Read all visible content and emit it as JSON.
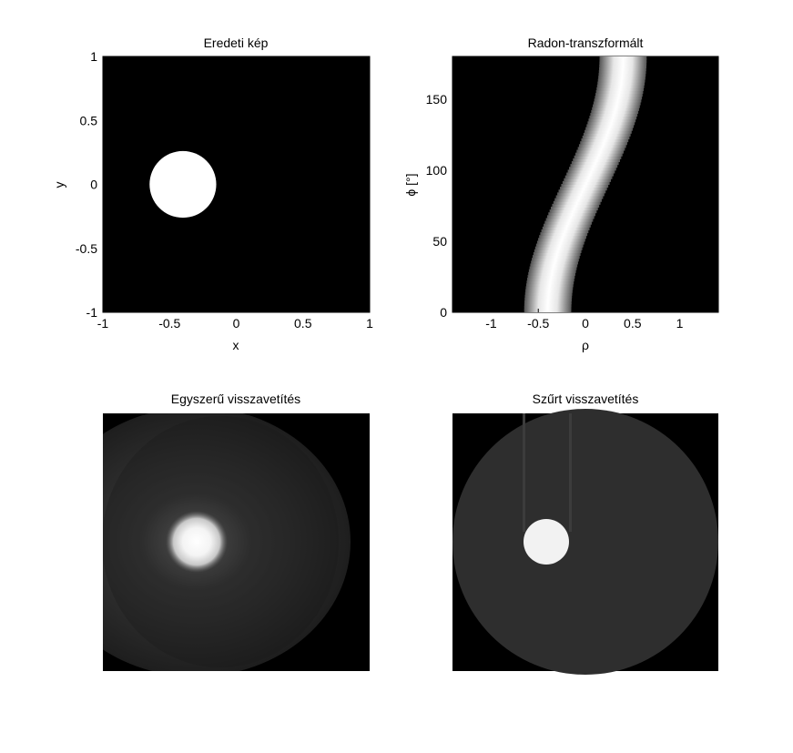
{
  "colors": {
    "background": "#ffffff",
    "axes_background": "#000000",
    "foreground": "#000000"
  },
  "panels": {
    "original": {
      "title": "Eredeti kép",
      "xlabel": "x",
      "ylabel": "y",
      "xticks": [
        "-1",
        "-0.5",
        "0",
        "0.5",
        "1"
      ],
      "yticks": [
        "1",
        "0.5",
        "0",
        "-0.5",
        "-1"
      ],
      "xlim": [
        -1,
        1
      ],
      "ylim": [
        -1,
        1
      ],
      "disk": {
        "center_x": -0.4,
        "center_y": 0,
        "radius": 0.25
      }
    },
    "radon": {
      "title": "Radon-transzformált",
      "xlabel": "ρ",
      "ylabel": "ϕ [°]",
      "xticks": [
        "-1",
        "-0.5",
        "0",
        "0.5",
        "1"
      ],
      "yticks": [
        "150",
        "100",
        "50",
        "0"
      ],
      "xlim": [
        -1.41,
        1.41
      ],
      "ylim": [
        0,
        180
      ],
      "sinogram": {
        "amplitude": 0.4,
        "phase_deg": 180,
        "halfwidth": 0.25
      }
    },
    "backprojection": {
      "title": "Egyszerű visszavetítés"
    },
    "filtered": {
      "title": "Szűrt visszavetítés"
    }
  }
}
